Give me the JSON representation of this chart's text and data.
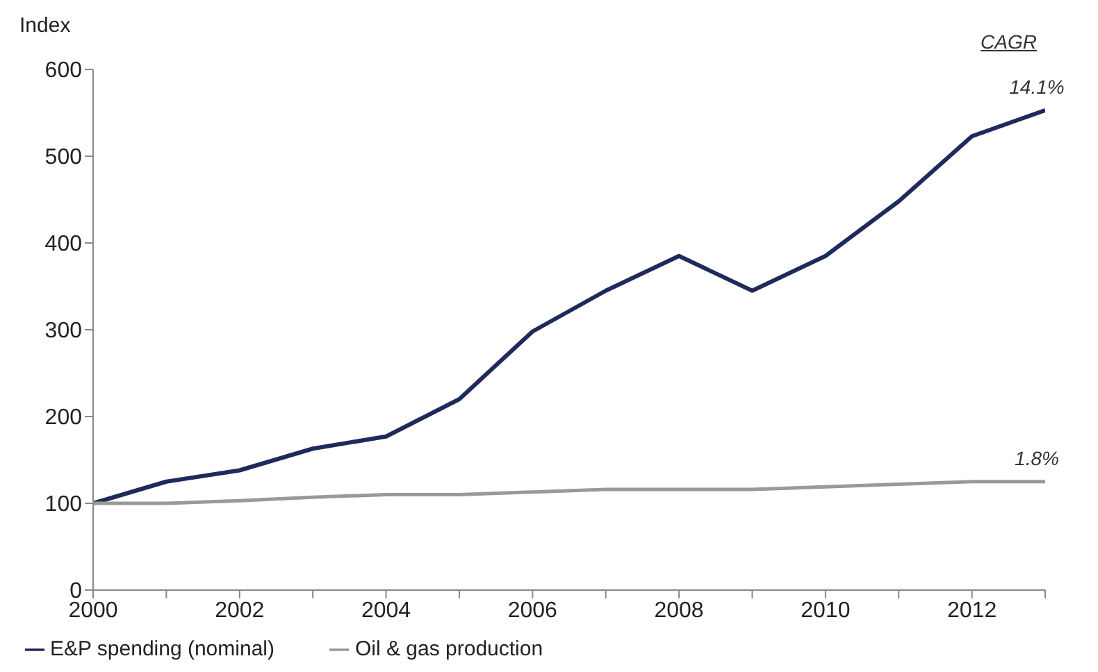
{
  "chart_data": {
    "type": "line",
    "ylabel": "Index",
    "x": [
      2000,
      2001,
      2002,
      2003,
      2004,
      2005,
      2006,
      2007,
      2008,
      2009,
      2010,
      2011,
      2012,
      2013
    ],
    "series": [
      {
        "name": "E&P spending (nominal)",
        "color": "#1f2a5c",
        "values": [
          100,
          125,
          138,
          163,
          177,
          220,
          298,
          345,
          385,
          345,
          385,
          448,
          523,
          553
        ]
      },
      {
        "name": "Oil & gas production",
        "color": "#999999",
        "values": [
          100,
          100,
          103,
          107,
          110,
          110,
          113,
          116,
          116,
          116,
          119,
          122,
          125,
          125
        ]
      }
    ],
    "xlim": [
      2000,
      2013
    ],
    "xticks": [
      2000,
      {
        "value": 2001,
        "label": null
      },
      2002,
      {
        "value": 2003,
        "label": null
      },
      2004,
      {
        "value": 2005,
        "label": null
      },
      2006,
      {
        "value": 2007,
        "label": null
      },
      2008,
      {
        "value": 2009,
        "label": null
      },
      2010,
      {
        "value": 2011,
        "label": null
      },
      2012,
      {
        "value": 2013,
        "label": null
      }
    ],
    "ylim": [
      0,
      600
    ],
    "yticks": [
      0,
      100,
      200,
      300,
      400,
      500,
      600
    ],
    "grid": false,
    "legend": "bottom left",
    "marker": "none",
    "line_style": "solid",
    "annotations": [
      "CAGR",
      {
        "text": "14.1%",
        "x": 2013,
        "y": 553
      },
      {
        "text": "1.8%",
        "x": 2013,
        "y": 125
      }
    ]
  }
}
